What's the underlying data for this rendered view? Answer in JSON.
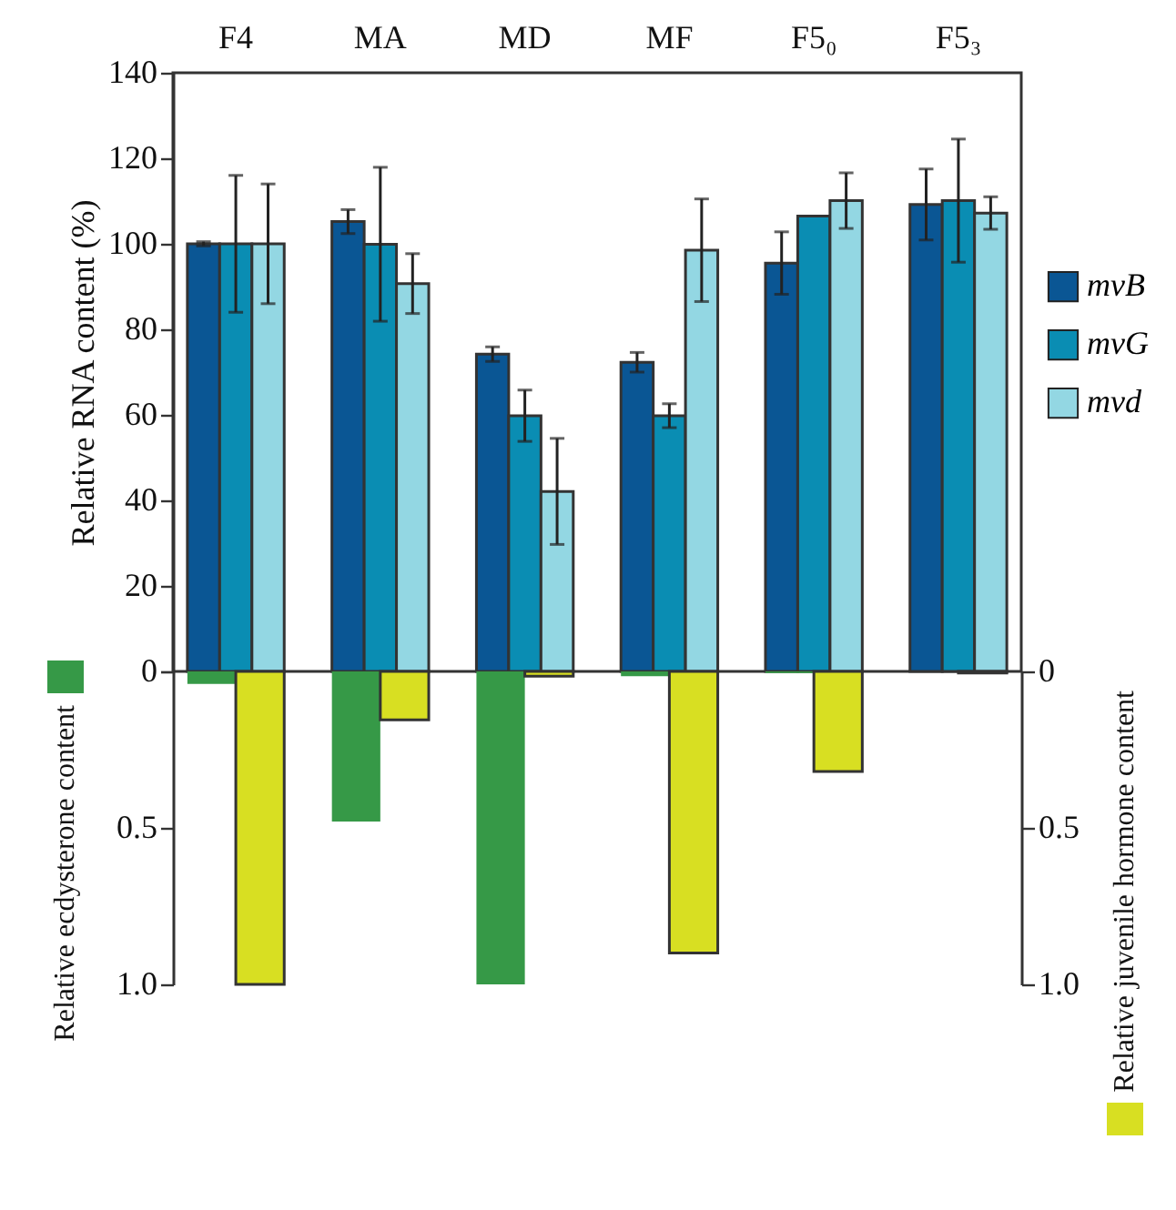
{
  "chart_data": [
    {
      "type": "bar",
      "categories": [
        "F4",
        "MA",
        "MD",
        "MF",
        "F5₀",
        "F5₃"
      ],
      "ylabel": "Relative RNA content (%)",
      "ylim": [
        0,
        140
      ],
      "yticks": [
        0,
        20,
        40,
        60,
        80,
        100,
        120,
        140
      ],
      "legend": "right",
      "series": [
        {
          "name": "mvB",
          "color": "#0a5694",
          "values": [
            100,
            105.2,
            74.2,
            72.3,
            95.5,
            109.2
          ],
          "errors": [
            0.5,
            2.8,
            1.7,
            2.3,
            7.3,
            8.3
          ]
        },
        {
          "name": "mvG",
          "color": "#0a8db3",
          "values": [
            100,
            99.9,
            59.8,
            59.8,
            106.5,
            110.1
          ],
          "errors": [
            16,
            18,
            6,
            2.8,
            null,
            14.4
          ]
        },
        {
          "name": "mvd",
          "color": "#93d7e3",
          "values": [
            100,
            90.7,
            42.1,
            98.5,
            110.1,
            107.2
          ],
          "errors": [
            14,
            7,
            12.4,
            12,
            6.5,
            3.8
          ]
        }
      ]
    },
    {
      "type": "bar",
      "categories": [
        null,
        null,
        null,
        null,
        null,
        null
      ],
      "ylabel": "Relative ecdysterone content",
      "y2label": "Relative juvenile hormone content",
      "ylim": [
        1,
        0
      ],
      "yticks": [
        {
          "value": 0,
          "label": null
        },
        0.5,
        {
          "value": 1,
          "label": "1.0"
        }
      ],
      "y2lim": [
        1,
        0
      ],
      "y2ticks": [
        0,
        0.5,
        {
          "value": 1,
          "label": "1.0"
        }
      ],
      "tick_labels": "y",
      "series": [
        {
          "color": "#369947",
          "values": [
            0.04,
            0.48,
            1.0,
            0.015,
            0.005,
            0
          ]
        },
        {
          "color": "#d8df22",
          "axis": "y2",
          "values": [
            1.0,
            0.155,
            0.015,
            0.9,
            0.32,
            0.005
          ]
        }
      ]
    }
  ]
}
